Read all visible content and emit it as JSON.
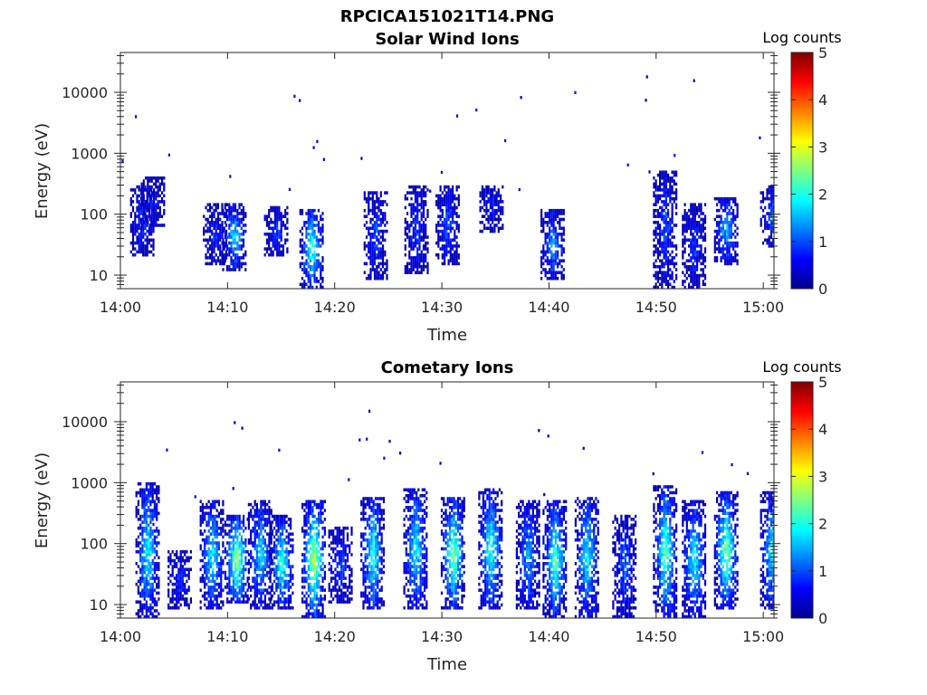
{
  "figure": {
    "title": "RPCICA151021T14.PNG"
  },
  "chart_data": [
    {
      "type": "heatmap",
      "title": "Solar Wind Ions",
      "xlabel": "Time",
      "ylabel": "Energy (eV)",
      "x_tick_labels": [
        "14:00",
        "14:10",
        "14:20",
        "14:30",
        "14:40",
        "14:50",
        "15:00"
      ],
      "x_tick_minutes": [
        0,
        10,
        20,
        30,
        40,
        50,
        60
      ],
      "xlim_minutes": [
        0,
        61
      ],
      "y_tick_labels": [
        "10",
        "100",
        "1000",
        "10000"
      ],
      "y_tick_values": [
        10,
        100,
        1000,
        10000
      ],
      "ylim": [
        6,
        45000
      ],
      "y_scale": "log",
      "colorbar": {
        "label": "Log counts",
        "ticks": [
          "0",
          "1",
          "2",
          "3",
          "4",
          "5"
        ],
        "range": [
          0,
          5
        ],
        "colormap": "jet"
      },
      "bursts": [
        {
          "t": 2.0,
          "emin": 20,
          "emax": 300,
          "peak": 0.9
        },
        {
          "t": 3.0,
          "emin": 60,
          "emax": 400,
          "peak": 0.7
        },
        {
          "t": 8.8,
          "emin": 15,
          "emax": 150,
          "peak": 0.8
        },
        {
          "t": 10.6,
          "emin": 12,
          "emax": 150,
          "peak": 1.8
        },
        {
          "t": 14.5,
          "emin": 20,
          "emax": 130,
          "peak": 0.9
        },
        {
          "t": 17.8,
          "emin": 6,
          "emax": 120,
          "peak": 2.2
        },
        {
          "t": 23.8,
          "emin": 8,
          "emax": 250,
          "peak": 1.0
        },
        {
          "t": 27.6,
          "emin": 10,
          "emax": 300,
          "peak": 0.9
        },
        {
          "t": 30.5,
          "emin": 15,
          "emax": 300,
          "peak": 1.1
        },
        {
          "t": 34.6,
          "emin": 50,
          "emax": 300,
          "peak": 0.7
        },
        {
          "t": 40.3,
          "emin": 8,
          "emax": 120,
          "peak": 1.5
        },
        {
          "t": 50.8,
          "emin": 6,
          "emax": 500,
          "peak": 1.0
        },
        {
          "t": 53.5,
          "emin": 6,
          "emax": 150,
          "peak": 0.9
        },
        {
          "t": 56.5,
          "emin": 15,
          "emax": 200,
          "peak": 1.6
        },
        {
          "t": 60.8,
          "emin": 30,
          "emax": 300,
          "peak": 1.2
        }
      ]
    },
    {
      "type": "heatmap",
      "title": "Cometary Ions",
      "xlabel": "Time",
      "ylabel": "Energy (eV)",
      "x_tick_labels": [
        "14:00",
        "14:10",
        "14:20",
        "14:30",
        "14:40",
        "14:50",
        "15:00"
      ],
      "x_tick_minutes": [
        0,
        10,
        20,
        30,
        40,
        50,
        60
      ],
      "xlim_minutes": [
        0,
        61
      ],
      "y_tick_labels": [
        "10",
        "100",
        "1000",
        "10000"
      ],
      "y_tick_values": [
        10,
        100,
        1000,
        10000
      ],
      "ylim": [
        6,
        45000
      ],
      "y_scale": "log",
      "colorbar": {
        "label": "Log counts",
        "ticks": [
          "0",
          "1",
          "2",
          "3",
          "4",
          "5"
        ],
        "range": [
          0,
          5
        ],
        "colormap": "jet"
      },
      "bursts": [
        {
          "t": 2.5,
          "emin": 6,
          "emax": 1000,
          "peak": 2.0
        },
        {
          "t": 5.5,
          "emin": 8,
          "emax": 80,
          "peak": 0.8
        },
        {
          "t": 8.5,
          "emin": 8,
          "emax": 500,
          "peak": 2.0
        },
        {
          "t": 10.8,
          "emin": 10,
          "emax": 300,
          "peak": 2.8
        },
        {
          "t": 13.0,
          "emin": 8,
          "emax": 500,
          "peak": 1.8
        },
        {
          "t": 15.0,
          "emin": 8,
          "emax": 300,
          "peak": 2.2
        },
        {
          "t": 18.0,
          "emin": 6,
          "emax": 500,
          "peak": 3.0
        },
        {
          "t": 20.5,
          "emin": 10,
          "emax": 200,
          "peak": 1.0
        },
        {
          "t": 23.5,
          "emin": 8,
          "emax": 600,
          "peak": 2.2
        },
        {
          "t": 27.5,
          "emin": 8,
          "emax": 800,
          "peak": 2.0
        },
        {
          "t": 31.0,
          "emin": 8,
          "emax": 600,
          "peak": 2.6
        },
        {
          "t": 34.5,
          "emin": 8,
          "emax": 800,
          "peak": 2.2
        },
        {
          "t": 38.0,
          "emin": 8,
          "emax": 500,
          "peak": 1.5
        },
        {
          "t": 40.5,
          "emin": 6,
          "emax": 500,
          "peak": 2.4
        },
        {
          "t": 43.5,
          "emin": 6,
          "emax": 600,
          "peak": 2.0
        },
        {
          "t": 47.0,
          "emin": 6,
          "emax": 300,
          "peak": 1.2
        },
        {
          "t": 50.8,
          "emin": 6,
          "emax": 900,
          "peak": 2.4
        },
        {
          "t": 53.5,
          "emin": 6,
          "emax": 500,
          "peak": 2.0
        },
        {
          "t": 56.5,
          "emin": 8,
          "emax": 700,
          "peak": 2.6
        },
        {
          "t": 60.8,
          "emin": 8,
          "emax": 700,
          "peak": 2.0
        }
      ]
    }
  ]
}
